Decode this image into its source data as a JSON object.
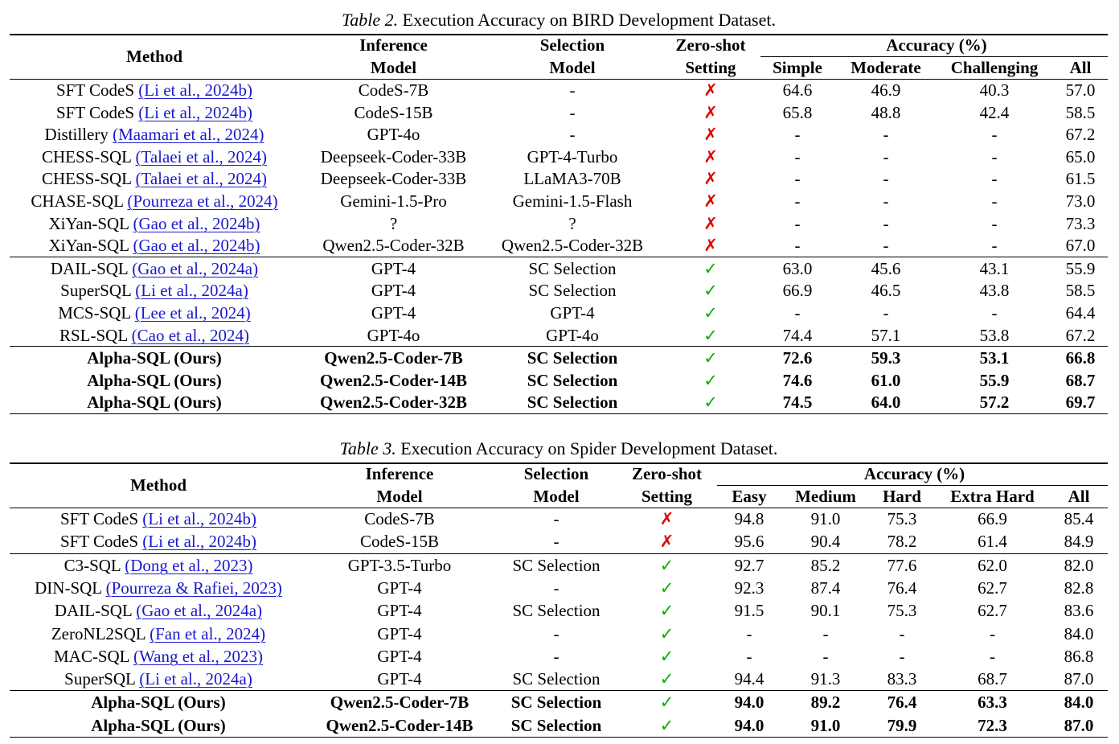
{
  "table2": {
    "caption_num": "Table 2.",
    "caption_text": " Execution Accuracy on BIRD Development Dataset.",
    "headers": {
      "method": "Method",
      "inference_1": "Inference",
      "inference_2": "Model",
      "selection_1": "Selection",
      "selection_2": "Model",
      "zeroshot_1": "Zero-shot",
      "zeroshot_2": "Setting",
      "accuracy": "Accuracy (%)",
      "c1": "Simple",
      "c2": "Moderate",
      "c3": "Challenging",
      "c4": "All"
    },
    "rows": [
      {
        "name": "SFT CodeS",
        "cite": "(Li et al., 2024b)",
        "inf": "CodeS-7B",
        "sel": "-",
        "zs": "✗",
        "v1": "64.6",
        "v2": "46.9",
        "v3": "40.3",
        "v4": "57.0"
      },
      {
        "name": "SFT CodeS",
        "cite": "(Li et al., 2024b)",
        "inf": "CodeS-15B",
        "sel": "-",
        "zs": "✗",
        "v1": "65.8",
        "v2": "48.8",
        "v3": "42.4",
        "v4": "58.5"
      },
      {
        "name": "Distillery",
        "cite": "(Maamari et al., 2024)",
        "inf": "GPT-4o",
        "sel": "-",
        "zs": "✗",
        "v1": "-",
        "v2": "-",
        "v3": "-",
        "v4": "67.2"
      },
      {
        "name": "CHESS-SQL",
        "cite": "(Talaei et al., 2024)",
        "inf": "Deepseek-Coder-33B",
        "sel": "GPT-4-Turbo",
        "zs": "✗",
        "v1": "-",
        "v2": "-",
        "v3": "-",
        "v4": "65.0"
      },
      {
        "name": "CHESS-SQL",
        "cite": "(Talaei et al., 2024)",
        "inf": "Deepseek-Coder-33B",
        "sel": "LLaMA3-70B",
        "zs": "✗",
        "v1": "-",
        "v2": "-",
        "v3": "-",
        "v4": "61.5"
      },
      {
        "name": "CHASE-SQL",
        "cite": "(Pourreza et al., 2024)",
        "inf": "Gemini-1.5-Pro",
        "sel": "Gemini-1.5-Flash",
        "zs": "✗",
        "v1": "-",
        "v2": "-",
        "v3": "-",
        "v4": "73.0"
      },
      {
        "name": "XiYan-SQL",
        "cite": "(Gao et al., 2024b)",
        "inf": "?",
        "sel": "?",
        "zs": "✗",
        "v1": "-",
        "v2": "-",
        "v3": "-",
        "v4": "73.3"
      },
      {
        "name": "XiYan-SQL",
        "cite": "(Gao et al., 2024b)",
        "inf": "Qwen2.5-Coder-32B",
        "sel": "Qwen2.5-Coder-32B",
        "zs": "✗",
        "v1": "-",
        "v2": "-",
        "v3": "-",
        "v4": "67.0"
      },
      {
        "name": "DAIL-SQL",
        "cite": "(Gao et al., 2024a)",
        "inf": "GPT-4",
        "sel": "SC Selection",
        "zs": "✓",
        "v1": "63.0",
        "v2": "45.6",
        "v3": "43.1",
        "v4": "55.9"
      },
      {
        "name": "SuperSQL",
        "cite": "(Li et al., 2024a)",
        "inf": "GPT-4",
        "sel": "SC Selection",
        "zs": "✓",
        "v1": "66.9",
        "v2": "46.5",
        "v3": "43.8",
        "v4": "58.5"
      },
      {
        "name": "MCS-SQL",
        "cite": "(Lee et al., 2024)",
        "inf": "GPT-4",
        "sel": "GPT-4",
        "zs": "✓",
        "v1": "-",
        "v2": "-",
        "v3": "-",
        "v4": "64.4"
      },
      {
        "name": "RSL-SQL",
        "cite": "(Cao et al., 2024)",
        "inf": "GPT-4o",
        "sel": "GPT-4o",
        "zs": "✓",
        "v1": "74.4",
        "v2": "57.1",
        "v3": "53.8",
        "v4": "67.2"
      },
      {
        "name": "Alpha-SQL (Ours)",
        "cite": "",
        "inf": "Qwen2.5-Coder-7B",
        "sel": "SC Selection",
        "zs": "✓",
        "v1": "72.6",
        "v2": "59.3",
        "v3": "53.1",
        "v4": "66.8"
      },
      {
        "name": "Alpha-SQL (Ours)",
        "cite": "",
        "inf": "Qwen2.5-Coder-14B",
        "sel": "SC Selection",
        "zs": "✓",
        "v1": "74.6",
        "v2": "61.0",
        "v3": "55.9",
        "v4": "68.7"
      },
      {
        "name": "Alpha-SQL (Ours)",
        "cite": "",
        "inf": "Qwen2.5-Coder-32B",
        "sel": "SC Selection",
        "zs": "✓",
        "v1": "74.5",
        "v2": "64.0",
        "v3": "57.2",
        "v4": "69.7"
      }
    ]
  },
  "table3": {
    "caption_num": "Table 3.",
    "caption_text": " Execution Accuracy on Spider Development Dataset.",
    "headers": {
      "method": "Method",
      "inference_1": "Inference",
      "inference_2": "Model",
      "selection_1": "Selection",
      "selection_2": "Model",
      "zeroshot_1": "Zero-shot",
      "zeroshot_2": "Setting",
      "accuracy": "Accuracy (%)",
      "c1": "Easy",
      "c2": "Medium",
      "c3": "Hard",
      "c4": "Extra Hard",
      "c5": "All"
    },
    "rows": [
      {
        "name": "SFT CodeS",
        "cite": "(Li et al., 2024b)",
        "inf": "CodeS-7B",
        "sel": "-",
        "zs": "✗",
        "v1": "94.8",
        "v2": "91.0",
        "v3": "75.3",
        "v4": "66.9",
        "v5": "85.4"
      },
      {
        "name": "SFT CodeS",
        "cite": "(Li et al., 2024b)",
        "inf": "CodeS-15B",
        "sel": "-",
        "zs": "✗",
        "v1": "95.6",
        "v2": "90.4",
        "v3": "78.2",
        "v4": "61.4",
        "v5": "84.9"
      },
      {
        "name": "C3-SQL",
        "cite": "(Dong et al., 2023)",
        "inf": "GPT-3.5-Turbo",
        "sel": "SC Selection",
        "zs": "✓",
        "v1": "92.7",
        "v2": "85.2",
        "v3": "77.6",
        "v4": "62.0",
        "v5": "82.0"
      },
      {
        "name": "DIN-SQL",
        "cite": "(Pourreza & Rafiei, 2023)",
        "inf": "GPT-4",
        "sel": "-",
        "zs": "✓",
        "v1": "92.3",
        "v2": "87.4",
        "v3": "76.4",
        "v4": "62.7",
        "v5": "82.8"
      },
      {
        "name": "DAIL-SQL",
        "cite": "(Gao et al., 2024a)",
        "inf": "GPT-4",
        "sel": "SC Selection",
        "zs": "✓",
        "v1": "91.5",
        "v2": "90.1",
        "v3": "75.3",
        "v4": "62.7",
        "v5": "83.6"
      },
      {
        "name": "ZeroNL2SQL",
        "cite": "(Fan et al., 2024)",
        "inf": "GPT-4",
        "sel": "-",
        "zs": "✓",
        "v1": "-",
        "v2": "-",
        "v3": "-",
        "v4": "-",
        "v5": "84.0"
      },
      {
        "name": "MAC-SQL",
        "cite": "(Wang et al., 2023)",
        "inf": "GPT-4",
        "sel": "-",
        "zs": "✓",
        "v1": "-",
        "v2": "-",
        "v3": "-",
        "v4": "-",
        "v5": "86.8"
      },
      {
        "name": "SuperSQL",
        "cite": "(Li et al., 2024a)",
        "inf": "GPT-4",
        "sel": "SC Selection",
        "zs": "✓",
        "v1": "94.4",
        "v2": "91.3",
        "v3": "83.3",
        "v4": "68.7",
        "v5": "87.0"
      },
      {
        "name": "Alpha-SQL (Ours)",
        "cite": "",
        "inf": "Qwen2.5-Coder-7B",
        "sel": "SC Selection",
        "zs": "✓",
        "v1": "94.0",
        "v2": "89.2",
        "v3": "76.4",
        "v4": "63.3",
        "v5": "84.0"
      },
      {
        "name": "Alpha-SQL (Ours)",
        "cite": "",
        "inf": "Qwen2.5-Coder-14B",
        "sel": "SC Selection",
        "zs": "✓",
        "v1": "94.0",
        "v2": "91.0",
        "v3": "79.9",
        "v4": "72.3",
        "v5": "87.0"
      }
    ]
  }
}
